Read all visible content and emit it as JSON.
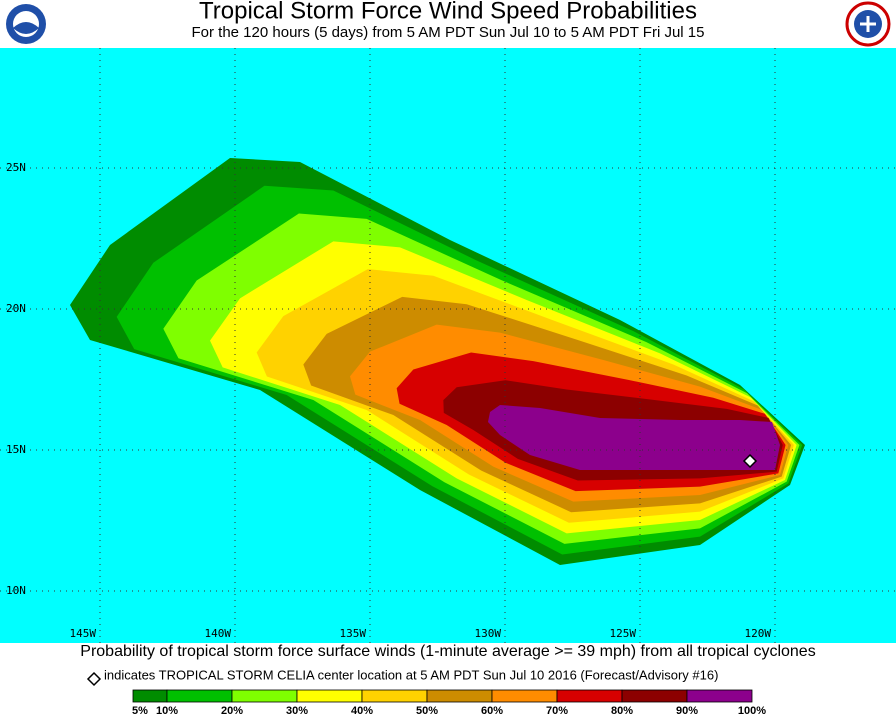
{
  "header": {
    "title": "Tropical Storm Force Wind Speed Probabilities",
    "subtitle": "For the 120 hours (5 days) from 5 AM PDT Sun Jul 10 to 5 AM PDT Fri Jul 15"
  },
  "map": {
    "longitude_labels": [
      "145W",
      "140W",
      "135W",
      "130W",
      "125W",
      "120W"
    ],
    "latitude_labels": [
      "25N",
      "20N",
      "15N",
      "10N"
    ],
    "background": "#00ffff"
  },
  "footer": {
    "caption": "Probability of tropical storm force surface winds (1-minute average >= 39 mph) from all tropical cyclones",
    "marker_note": "indicates TROPICAL STORM CELIA center location at 5 AM PDT Sun Jul 10 2016 (Forecast/Advisory #16)"
  },
  "legend": {
    "labels": [
      "5%",
      "10%",
      "20%",
      "30%",
      "40%",
      "50%",
      "60%",
      "70%",
      "80%",
      "90%",
      "100%"
    ],
    "colors": [
      "#008c00",
      "#00c000",
      "#7fff00",
      "#ffff00",
      "#ffd200",
      "#cd8c00",
      "#ff8c00",
      "#d70000",
      "#8c0000",
      "#8c008c"
    ]
  }
}
